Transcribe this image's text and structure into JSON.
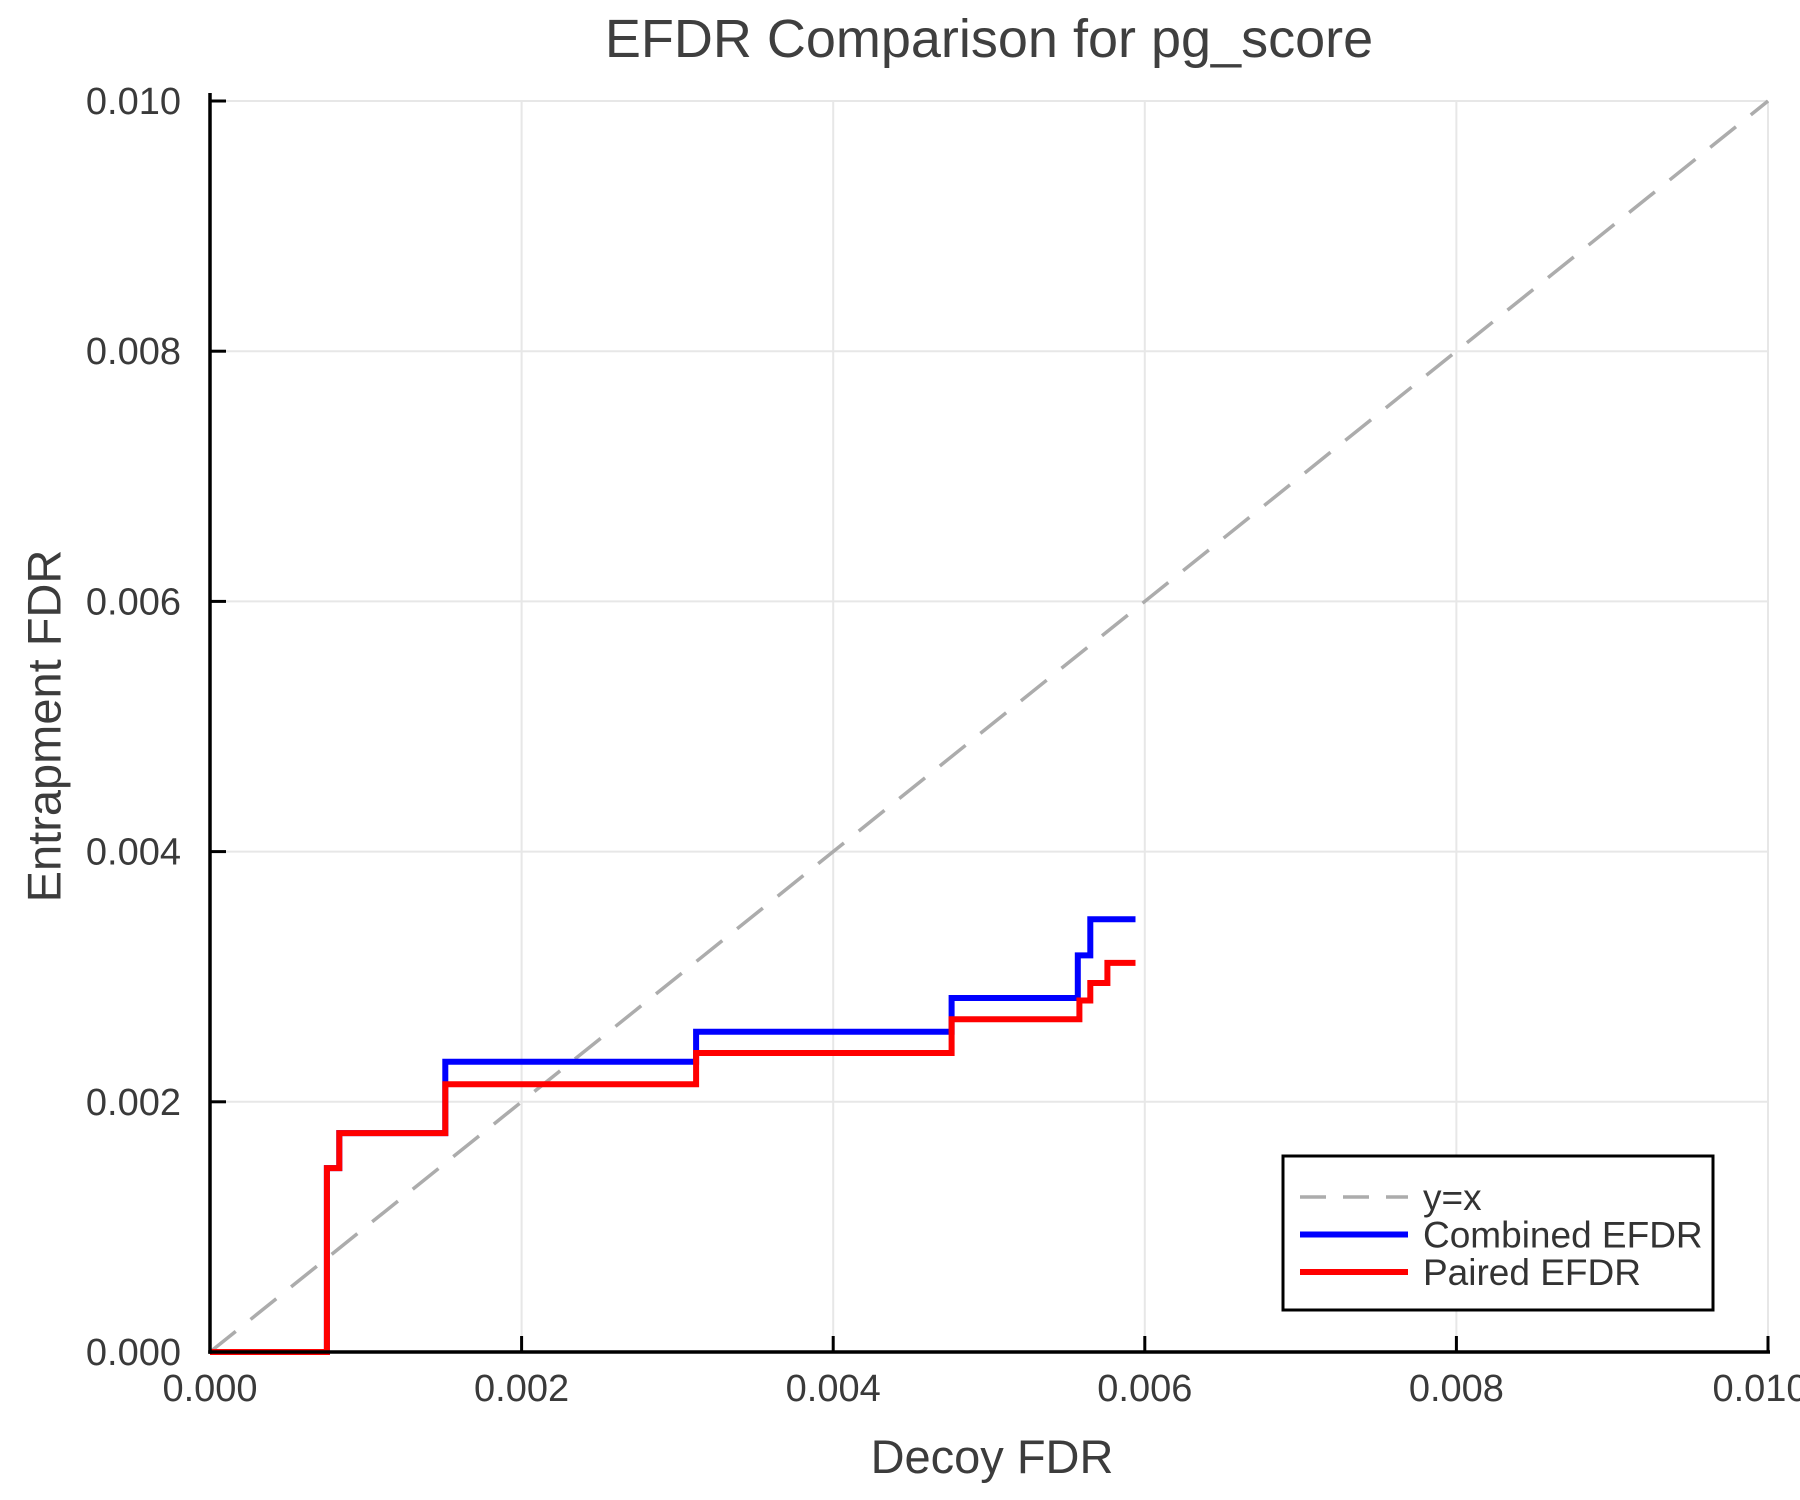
{
  "chart_data": {
    "type": "line",
    "title": "EFDR Comparison for pg_score",
    "xlabel": "Decoy FDR",
    "ylabel": "Entrapment FDR",
    "xlim": [
      0.0,
      0.01
    ],
    "ylim": [
      0.0,
      0.01
    ],
    "xticks": [
      0.0,
      0.002,
      0.004,
      0.006,
      0.008,
      0.01
    ],
    "yticks": [
      0.0,
      0.002,
      0.004,
      0.006,
      0.008,
      0.01
    ],
    "xtick_labels": [
      "0.000",
      "0.002",
      "0.004",
      "0.006",
      "0.008",
      "0.010"
    ],
    "ytick_labels": [
      "0.000",
      "0.002",
      "0.004",
      "0.006",
      "0.008",
      "0.010"
    ],
    "grid": true,
    "legend_position": "bottom-right",
    "colors": {
      "grid": "#e7e7e7",
      "spine": "#000000",
      "tick_label": "#3a3a3a",
      "legend_text": "#333333",
      "legend_border": "#000000",
      "diagonal": "#acacac",
      "combined": "#0000ff",
      "paired": "#ff0000"
    },
    "series": [
      {
        "name": "y=x",
        "style": "dashed",
        "color_key": "diagonal",
        "points": [
          [
            0.0,
            0.0
          ],
          [
            0.01,
            0.01
          ]
        ]
      },
      {
        "name": "Combined EFDR",
        "style": "solid",
        "color_key": "combined",
        "points": [
          [
            0.0,
            0.0
          ],
          [
            0.00075,
            0.0
          ],
          [
            0.00075,
            0.00147
          ],
          [
            0.00083,
            0.00147
          ],
          [
            0.00083,
            0.00175
          ],
          [
            0.00151,
            0.00175
          ],
          [
            0.00151,
            0.00232
          ],
          [
            0.00312,
            0.00232
          ],
          [
            0.00312,
            0.00256
          ],
          [
            0.00476,
            0.00256
          ],
          [
            0.00476,
            0.00283
          ],
          [
            0.00557,
            0.00283
          ],
          [
            0.00557,
            0.00317
          ],
          [
            0.00565,
            0.00317
          ],
          [
            0.00565,
            0.00346
          ],
          [
            0.00594,
            0.00346
          ]
        ]
      },
      {
        "name": "Paired EFDR",
        "style": "solid",
        "color_key": "paired",
        "points": [
          [
            0.0,
            0.0
          ],
          [
            0.00075,
            0.0
          ],
          [
            0.00075,
            0.00147
          ],
          [
            0.00083,
            0.00147
          ],
          [
            0.00083,
            0.00175
          ],
          [
            0.00151,
            0.00175
          ],
          [
            0.00151,
            0.00214
          ],
          [
            0.00312,
            0.00214
          ],
          [
            0.00312,
            0.00239
          ],
          [
            0.00476,
            0.00239
          ],
          [
            0.00476,
            0.00266
          ],
          [
            0.00558,
            0.00266
          ],
          [
            0.00558,
            0.00281
          ],
          [
            0.00565,
            0.00281
          ],
          [
            0.00565,
            0.00295
          ],
          [
            0.00576,
            0.00295
          ],
          [
            0.00576,
            0.00311
          ],
          [
            0.00594,
            0.00311
          ]
        ]
      }
    ],
    "legend_items": [
      "y=x",
      "Combined EFDR",
      "Paired EFDR"
    ]
  }
}
